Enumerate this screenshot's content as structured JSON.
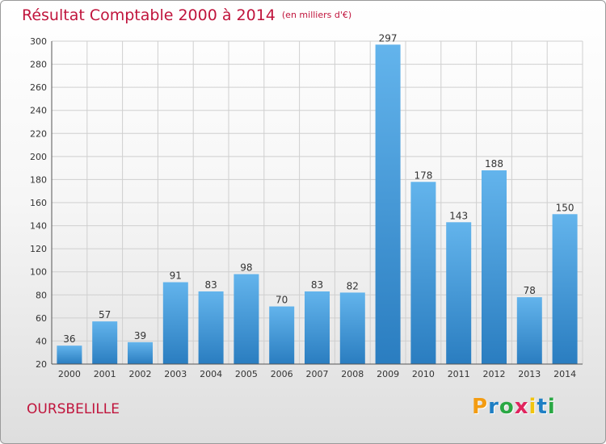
{
  "title": "Résultat Comptable 2000 à 2014",
  "subtitle": "(en milliers d'€)",
  "commune": "OURSBELILLE",
  "brand": {
    "letters": [
      "P",
      "r",
      "o",
      "x",
      "i",
      "t",
      "i"
    ],
    "colors": [
      "#f39c12",
      "#1f7fc4",
      "#2aa844",
      "#e0245e",
      "#f1c40f",
      "#1f7fc4",
      "#2aa844"
    ]
  },
  "colors": {
    "title": "#c0143c",
    "bar_top": "#63b4ec",
    "bar_bottom": "#2a7dc0",
    "grid": "#cfcfcf"
  },
  "chart_data": {
    "type": "bar",
    "title": "Résultat Comptable 2000 à 2014",
    "subtitle": "(en milliers d'€)",
    "xlabel": "",
    "ylabel": "",
    "categories": [
      "2000",
      "2001",
      "2002",
      "2003",
      "2004",
      "2005",
      "2006",
      "2007",
      "2008",
      "2009",
      "2010",
      "2011",
      "2012",
      "2013",
      "2014"
    ],
    "values": [
      36,
      57,
      39,
      91,
      83,
      98,
      70,
      83,
      82,
      297,
      178,
      143,
      188,
      78,
      150
    ],
    "ylim": [
      20,
      300
    ],
    "yticks": [
      20,
      40,
      60,
      80,
      100,
      120,
      140,
      160,
      180,
      200,
      220,
      240,
      260,
      280,
      300
    ],
    "grid": true,
    "data_labels": true
  }
}
